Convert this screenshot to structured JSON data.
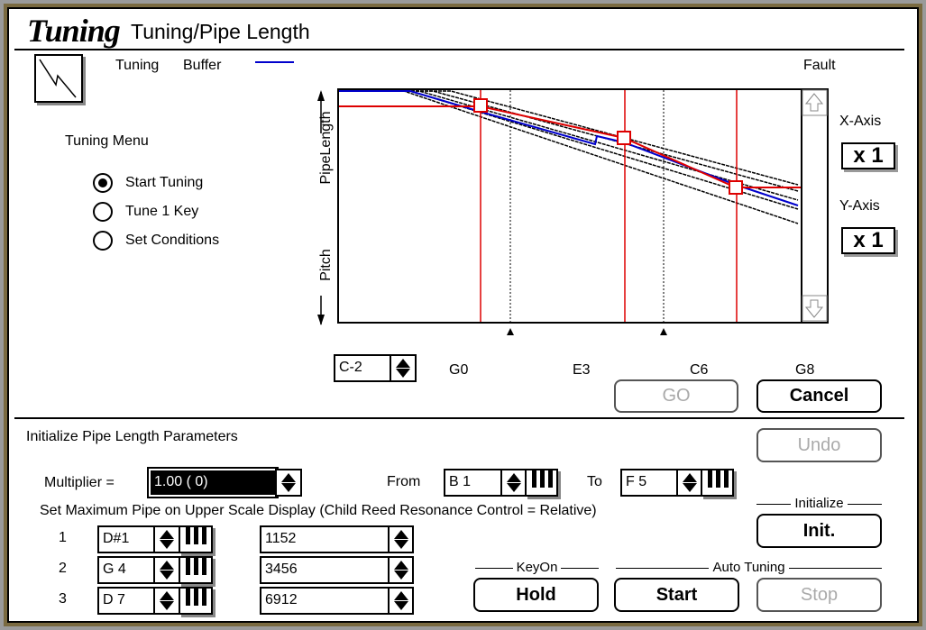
{
  "window": {
    "logo": "Tuning",
    "title": "Tuning/Pipe Length"
  },
  "legend": {
    "tuning": "Tuning",
    "buffer": "Buffer",
    "buffer_color": "#0000cc",
    "fault": "Fault"
  },
  "menu": {
    "title": "Tuning Menu",
    "options": [
      {
        "label": "Start Tuning",
        "selected": true
      },
      {
        "label": "Tune 1 Key",
        "selected": false
      },
      {
        "label": "Set Conditions",
        "selected": false
      }
    ]
  },
  "graph": {
    "y_label_top": "PipeLength",
    "y_label_bottom": "Pitch",
    "start_note": "C-2",
    "x_labels": [
      "G0",
      "E3",
      "C6",
      "G8"
    ],
    "colors": {
      "target": "#dd0000",
      "buffer": "#0000cc",
      "curves": "#000000"
    }
  },
  "axes": {
    "x_label": "X-Axis",
    "x_value": "x 1",
    "y_label": "Y-Axis",
    "y_value": "x 1"
  },
  "buttons": {
    "go": "GO",
    "cancel": "Cancel",
    "undo": "Undo",
    "init": "Init.",
    "hold": "Hold",
    "start": "Start",
    "stop": "Stop"
  },
  "params": {
    "heading": "Initialize Pipe Length Parameters",
    "multiplier_label": "Multiplier =",
    "multiplier_value": "1.00 (  0)",
    "from_label": "From",
    "from_value": "B  1",
    "to_label": "To",
    "to_value": "F  5",
    "max_pipe_text": "Set Maximum Pipe on Upper Scale Display (Child Reed Resonance Control = Relative)",
    "rows": [
      {
        "num": "1",
        "note": "D#1",
        "value": "1152"
      },
      {
        "num": "2",
        "note": "G 4",
        "value": "3456"
      },
      {
        "num": "3",
        "note": "D 7",
        "value": "6912"
      }
    ]
  },
  "groups": {
    "initialize": "Initialize",
    "keyon": "KeyOn",
    "auto_tuning": "Auto Tuning"
  }
}
